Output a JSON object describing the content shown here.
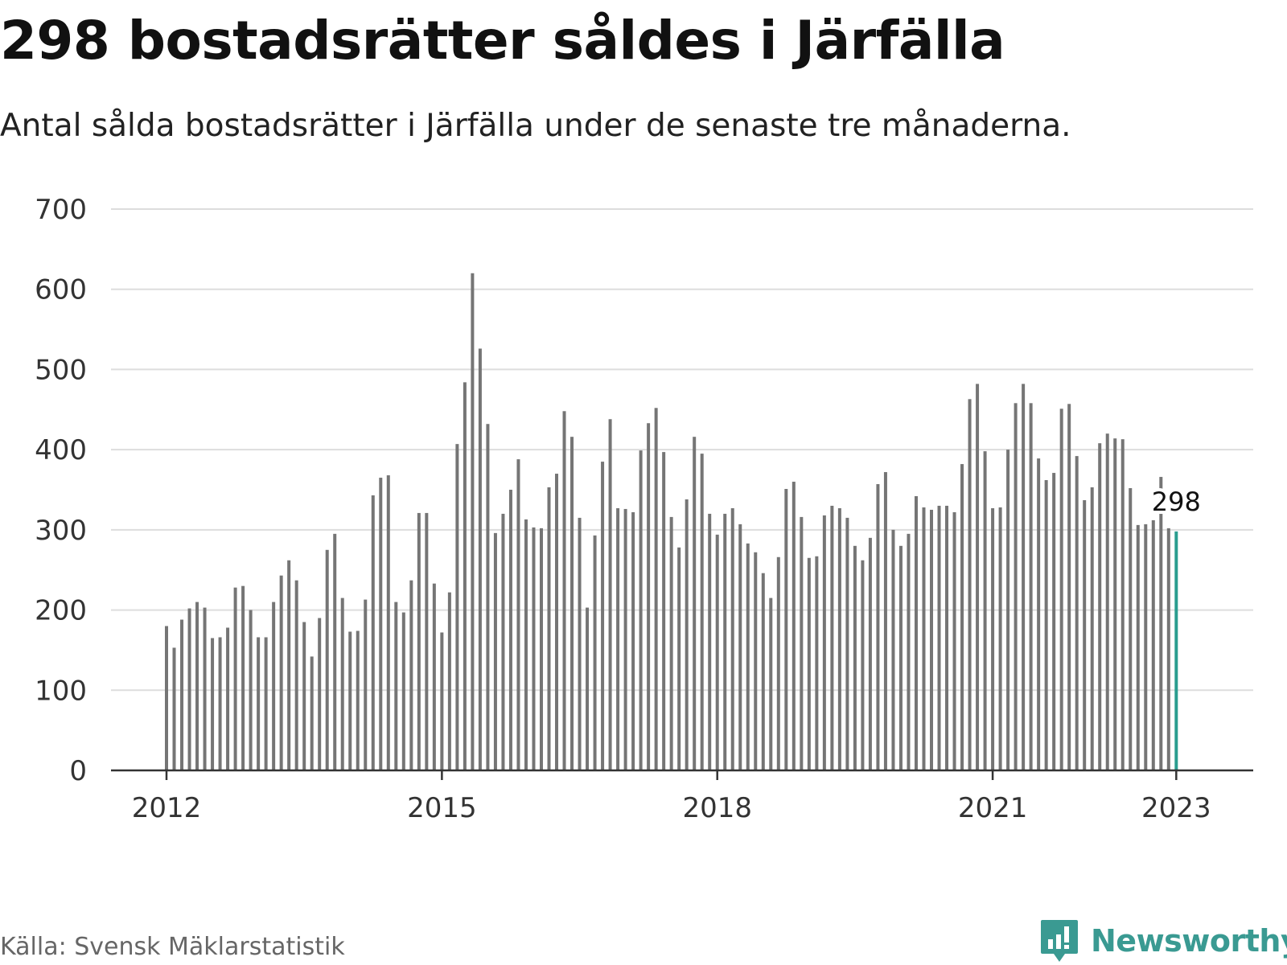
{
  "header": {
    "title": "298 bostadsrätter såldes i Järfälla",
    "subtitle": "Antal sålda bostadsrätter i Järfälla under de senaste tre månaderna."
  },
  "footer": {
    "source": "Källa: Svensk Mäklarstatistik",
    "brand": "Newsworthy",
    "brand_icon": "newsworthy-logo-icon"
  },
  "colors": {
    "bar": "#757575",
    "highlight": "#2a9d8f",
    "grid": "#dddddd",
    "axis": "#333333",
    "brand": "#3a9a92"
  },
  "chart_data": {
    "type": "bar",
    "title": "298 bostadsrätter såldes i Järfälla",
    "subtitle": "Antal sålda bostadsrätter i Järfälla under de senaste tre månaderna.",
    "xlabel": "",
    "ylabel": "",
    "ylim": [
      0,
      700
    ],
    "yticks": [
      0,
      100,
      200,
      300,
      400,
      500,
      600,
      700
    ],
    "x_start": "2012-01",
    "x_end": "2023-01",
    "x_unit": "month",
    "xtick_labels": [
      "2012",
      "2015",
      "2018",
      "2021",
      "2023"
    ],
    "grid": true,
    "highlight": {
      "x": "2023-01",
      "value": 298,
      "label": "298"
    },
    "values": [
      180,
      153,
      188,
      202,
      210,
      203,
      165,
      166,
      178,
      228,
      230,
      200,
      166,
      166,
      210,
      243,
      262,
      237,
      185,
      142,
      190,
      275,
      295,
      215,
      173,
      174,
      213,
      343,
      365,
      368,
      210,
      197,
      237,
      321,
      321,
      233,
      172,
      222,
      407,
      484,
      620,
      526,
      432,
      296,
      320,
      350,
      388,
      313,
      303,
      302,
      353,
      370,
      448,
      416,
      315,
      203,
      293,
      385,
      438,
      327,
      326,
      322,
      399,
      433,
      452,
      397,
      316,
      278,
      338,
      416,
      395,
      320,
      294,
      320,
      327,
      307,
      283,
      272,
      246,
      215,
      266,
      351,
      360,
      316,
      265,
      267,
      318,
      330,
      327,
      315,
      280,
      262,
      290,
      357,
      372,
      300,
      280,
      295,
      342,
      328,
      325,
      330,
      330,
      322,
      382,
      463,
      482,
      398,
      327,
      328,
      400,
      458,
      482,
      458,
      389,
      362,
      371,
      451,
      457,
      392,
      337,
      353,
      408,
      420,
      414,
      413,
      352,
      306,
      307,
      312,
      366,
      302,
      298
    ]
  }
}
